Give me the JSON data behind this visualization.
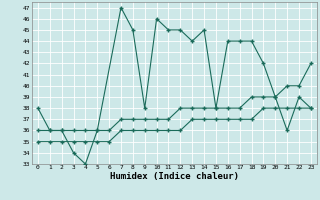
{
  "xlabel": "Humidex (Indice chaleur)",
  "bg_color": "#cde8e8",
  "grid_color": "#ffffff",
  "line_color": "#1a6b5a",
  "xlim": [
    -0.5,
    23.5
  ],
  "ylim": [
    33,
    47.5
  ],
  "xticks": [
    0,
    1,
    2,
    3,
    4,
    5,
    6,
    7,
    8,
    9,
    10,
    11,
    12,
    13,
    14,
    15,
    16,
    17,
    18,
    19,
    20,
    21,
    22,
    23
  ],
  "yticks": [
    33,
    34,
    35,
    36,
    37,
    38,
    39,
    40,
    41,
    42,
    43,
    44,
    45,
    46,
    47
  ],
  "line1_x": [
    0,
    1,
    2,
    3,
    4,
    5,
    7,
    8,
    9,
    10,
    11,
    12,
    13,
    14,
    15,
    16,
    17,
    18,
    19,
    20,
    21,
    22,
    23
  ],
  "line1_y": [
    38,
    36,
    36,
    34,
    33,
    36,
    47,
    45,
    38,
    46,
    45,
    45,
    44,
    45,
    38,
    44,
    44,
    44,
    42,
    39,
    36,
    39,
    38
  ],
  "line2_x": [
    0,
    1,
    2,
    3,
    4,
    5,
    6,
    7,
    8,
    9,
    10,
    11,
    12,
    13,
    14,
    15,
    16,
    17,
    18,
    19,
    20,
    21,
    22,
    23
  ],
  "line2_y": [
    36,
    36,
    36,
    36,
    36,
    36,
    36,
    37,
    37,
    37,
    37,
    37,
    38,
    38,
    38,
    38,
    38,
    38,
    39,
    39,
    39,
    40,
    40,
    42
  ],
  "line3_x": [
    0,
    1,
    2,
    3,
    4,
    5,
    6,
    7,
    8,
    9,
    10,
    11,
    12,
    13,
    14,
    15,
    16,
    17,
    18,
    19,
    20,
    21,
    22,
    23
  ],
  "line3_y": [
    35,
    35,
    35,
    35,
    35,
    35,
    35,
    36,
    36,
    36,
    36,
    36,
    36,
    37,
    37,
    37,
    37,
    37,
    37,
    38,
    38,
    38,
    38,
    38
  ],
  "marker": "+",
  "markersize": 3,
  "linewidth": 0.8
}
